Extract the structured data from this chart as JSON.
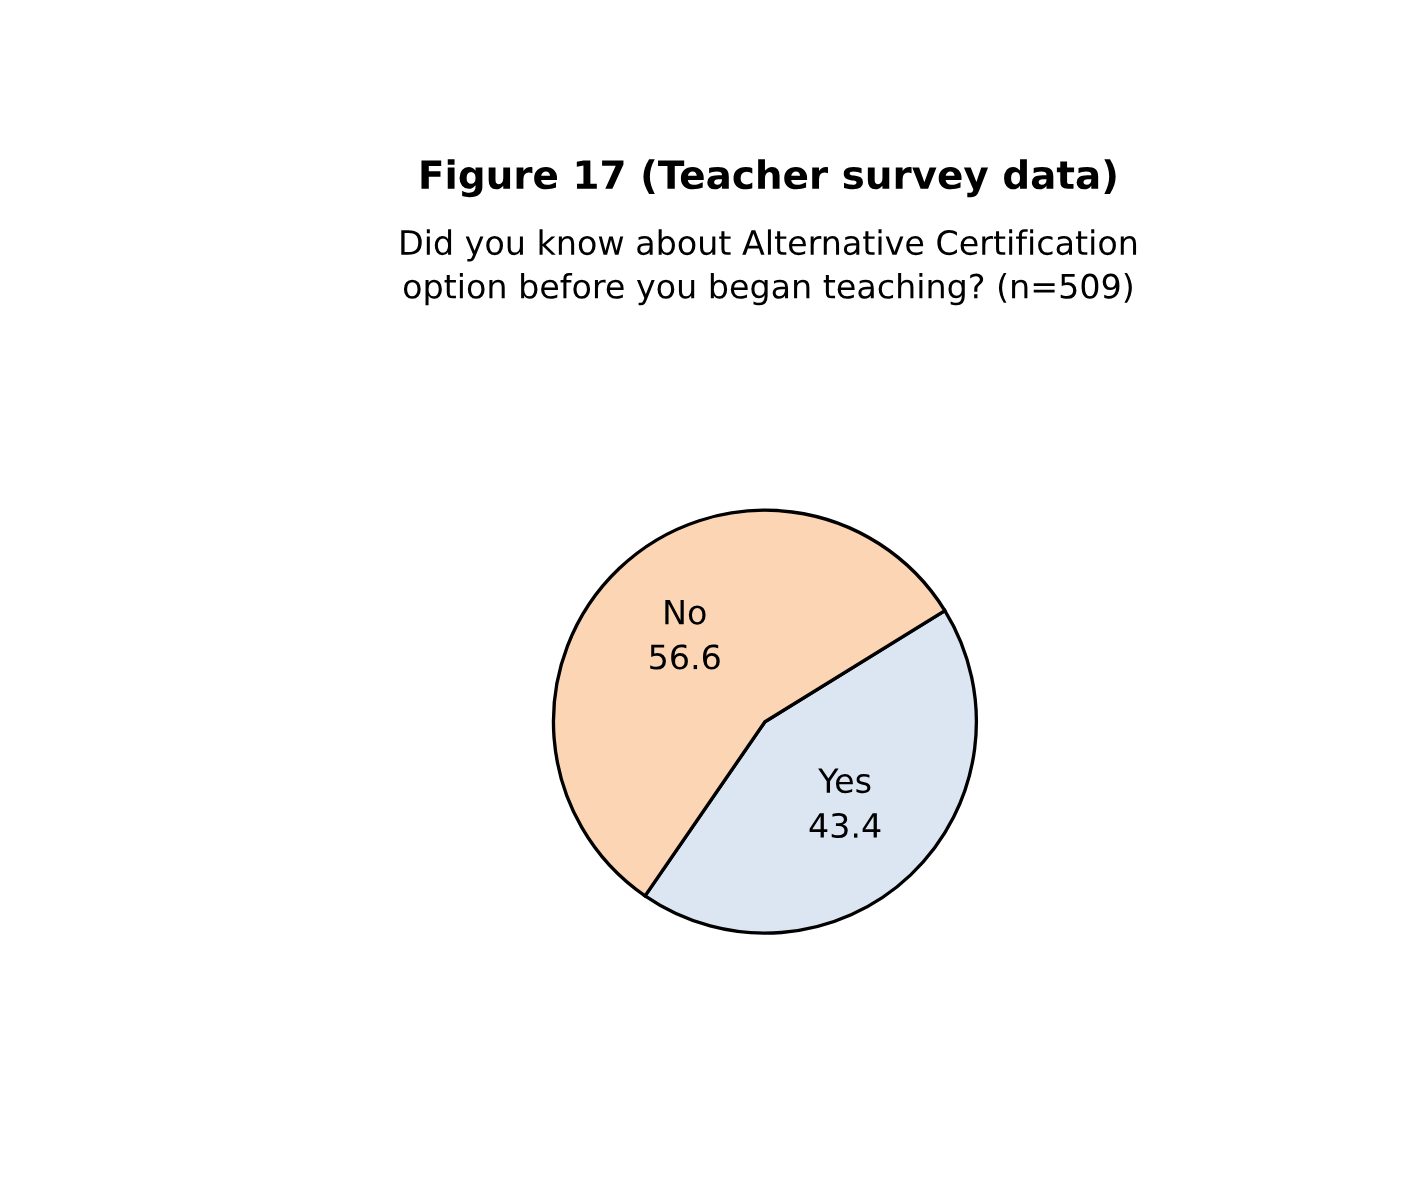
{
  "chart_data": {
    "type": "pie",
    "title": "Figure 17 (Teacher survey data)",
    "subtitle": "Did you know about Alternative Certification\noption before you began teaching? (n=509)",
    "categories": [
      "Yes",
      "No"
    ],
    "values": [
      43.4,
      56.6
    ],
    "colors": [
      "#dce6f2",
      "#fcd5b4"
    ],
    "data_labels": true
  }
}
